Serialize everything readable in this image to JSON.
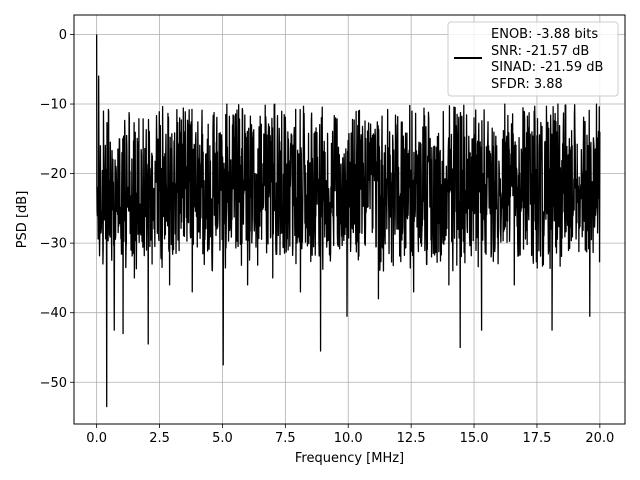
{
  "chart_data": {
    "type": "line",
    "title": "",
    "xlabel": "Frequency [MHz]",
    "ylabel": "PSD [dB]",
    "xlim": [
      -0.9,
      21.0
    ],
    "ylim": [
      -56.0,
      2.8
    ],
    "xticks": [
      0.0,
      2.5,
      5.0,
      7.5,
      10.0,
      12.5,
      15.0,
      17.5,
      20.0
    ],
    "xtick_labels": [
      "0.0",
      "2.5",
      "5.0",
      "7.5",
      "10.0",
      "12.5",
      "15.0",
      "17.5",
      "20.0"
    ],
    "yticks": [
      0,
      -10,
      -20,
      -30,
      -40,
      -50
    ],
    "ytick_labels": [
      "0",
      "−10",
      "−20",
      "−30",
      "−40",
      "−50"
    ],
    "grid": true,
    "legend_placement": "upper right",
    "legend": [
      "ENOB: -3.88 bits",
      "SNR: -21.57 dB",
      "SINAD: -21.59 dB",
      "SFDR: 3.88"
    ],
    "line_color": "#000000",
    "series": [
      {
        "x": [
          0.0,
          0.04,
          0.08,
          0.15,
          0.25,
          0.4,
          0.5,
          0.7,
          0.9,
          1.05,
          1.3,
          1.5,
          2.05,
          2.5,
          2.9,
          3.3,
          3.8,
          4.5,
          4.9,
          5.03,
          5.4,
          6.0,
          6.3,
          7.0,
          7.6,
          8.1,
          8.9,
          9.5,
          9.95,
          10.5,
          11.2,
          11.9,
          12.6,
          13.3,
          14.0,
          14.45,
          15.0,
          15.3,
          15.9,
          16.6,
          17.3,
          18.1,
          18.9,
          19.6,
          20.0
        ],
        "values": [
          0.0,
          -22.0,
          -6.0,
          -16.0,
          -33.0,
          -53.5,
          -21.0,
          -42.5,
          -15.0,
          -43.0,
          -12.0,
          -35.0,
          -44.5,
          -14.0,
          -36.0,
          -12.0,
          -37.0,
          -16.0,
          -31.0,
          -47.5,
          -13.0,
          -36.0,
          -20.0,
          -35.0,
          -14.0,
          -37.0,
          -45.5,
          -12.0,
          -40.5,
          -16.0,
          -38.0,
          -13.0,
          -37.0,
          -18.0,
          -36.0,
          -45.0,
          -12.0,
          -42.5,
          -16.0,
          -36.0,
          -14.0,
          -42.5,
          -16.0,
          -40.5,
          -14.0
        ]
      }
    ]
  }
}
